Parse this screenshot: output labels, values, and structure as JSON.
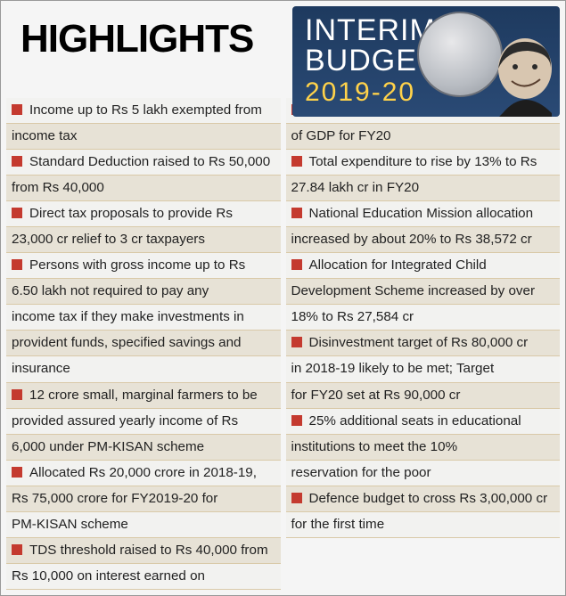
{
  "title": "HIGHLIGHTS",
  "title_fontsize": 44,
  "badge": {
    "line1": "INTERIM",
    "line2": "BUDGET",
    "year": "2019-20",
    "bg_gradient": [
      "#1e3a5f",
      "#2a4a75"
    ],
    "year_color": "#ffd24a",
    "text_color": "#ffffff"
  },
  "colors": {
    "bullet": "#c43a2f",
    "row_a": "#f2f2f0",
    "row_b": "#e7e2d6",
    "rule": "#d9c9a8",
    "text": "#222222",
    "page_bg": "#f5f5f5"
  },
  "left_items": [
    "Income up to Rs 5 lakh exempted from income tax",
    "Standard Deduction raised to Rs 50,000 from Rs 40,000",
    "Direct tax proposals to provide Rs 23,000 cr relief to 3 cr taxpayers",
    "Persons with gross income up to Rs 6.50 lakh not required to pay any income tax if they make investments in provident funds, specified savings and insurance",
    "12 crore small, marginal farmers to be provided assured yearly income of Rs 6,000 under PM-KISAN scheme",
    "Allocated Rs 20,000 crore in 2018-19, Rs 75,000 crore for FY2019-20 for PM-KISAN scheme",
    "TDS threshold raised to Rs 40,000 from Rs 10,000 on interest earned on"
  ],
  "right_items": [
    "Current Account Deficit pegged at 2.5% of GDP for FY20",
    "Total expenditure to rise by 13% to Rs 27.84 lakh cr in FY20",
    "National Education Mission allocation increased by about 20% to Rs 38,572 cr",
    "Allocation for Integrated Child Development Scheme increased by over 18% to Rs 27,584 cr",
    "Disinvestment target of Rs 80,000 cr in 2018-19 likely to be met; Target for FY20 set at Rs 90,000 cr",
    "25% additional seats in educational institutions to meet the 10% reservation for the poor",
    "Defence budget to cross Rs 3,00,000 cr for the first time"
  ],
  "line_wrap_chars": 38
}
